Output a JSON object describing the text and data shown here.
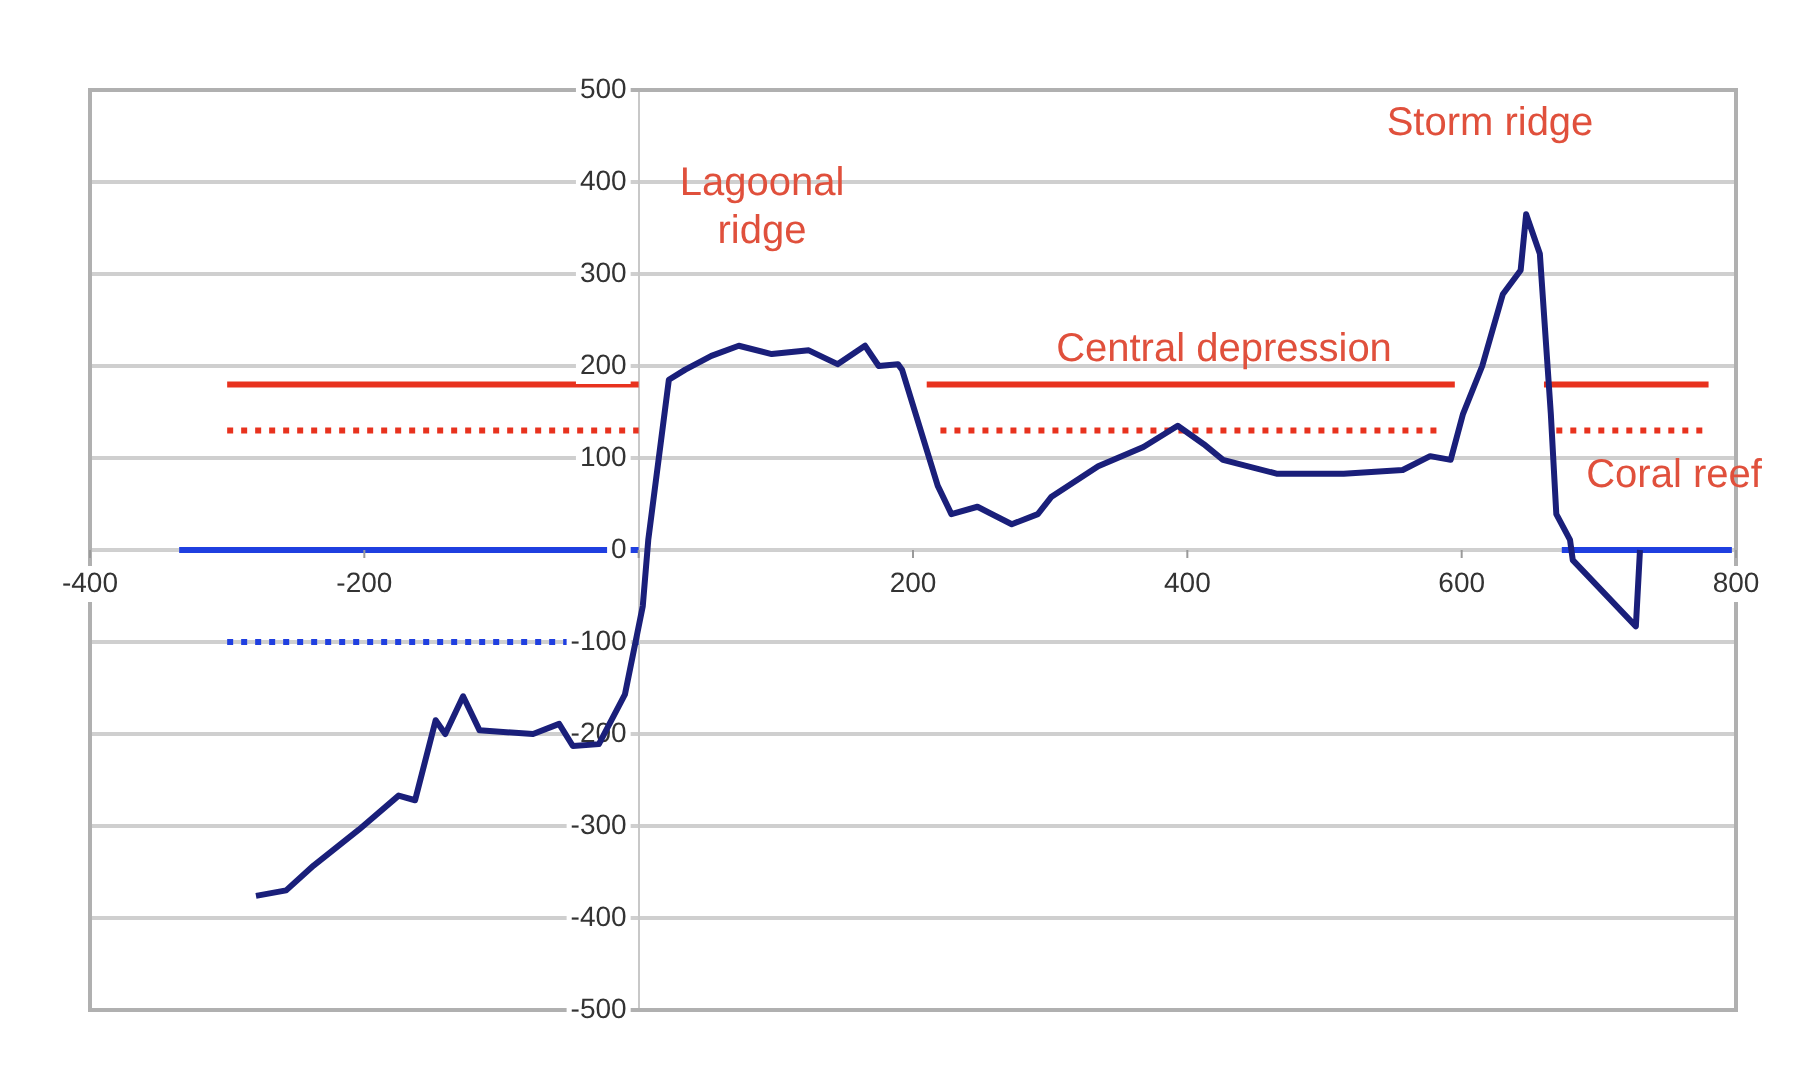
{
  "chart_data": {
    "type": "line",
    "xlim": [
      -400,
      800
    ],
    "ylim": [
      -500,
      500
    ],
    "xticks": [
      -400,
      -200,
      {
        "value": 0,
        "label": null
      },
      200,
      400,
      600,
      800
    ],
    "yticks": [
      -500,
      -400,
      -300,
      -200,
      -100,
      0,
      100,
      200,
      300,
      400,
      500
    ],
    "grid": "y",
    "legend": false,
    "marker": "none",
    "series": [
      {
        "color": "#e8321e",
        "line_style": "solid",
        "x": [
          -300,
          0,
          100,
          210,
          595,
          630,
          660,
          780
        ],
        "values": [
          180,
          180,
          null,
          180,
          180,
          null,
          180,
          180
        ]
      },
      {
        "color": "#e8321e",
        "line_style": "dotted",
        "x": [
          -300,
          0,
          100,
          220,
          586,
          630,
          669,
          778
        ],
        "values": [
          130,
          130,
          null,
          130,
          130,
          null,
          130,
          130
        ]
      },
      {
        "color": "#1f3fe0",
        "line_style": "solid",
        "x": [
          -335,
          0,
          300,
          673,
          797
        ],
        "values": [
          0,
          0,
          null,
          0,
          0
        ]
      },
      {
        "color": "#1f3fe0",
        "line_style": "dotted",
        "x": [
          -300,
          0
        ],
        "values": [
          -100,
          -100
        ]
      },
      {
        "color": "#1a1f7a",
        "line_style": "solid",
        "x": [
          -279,
          -257,
          -237,
          -204,
          -175,
          -163,
          -148,
          -141,
          -128,
          -116,
          -77,
          -58,
          -48,
          -29,
          -10,
          3,
          7,
          22,
          34,
          53,
          73,
          97,
          124,
          145,
          165,
          175,
          189,
          192,
          218,
          228,
          247,
          272,
          291,
          301,
          335,
          368,
          393,
          412,
          426,
          465,
          514,
          557,
          577,
          592,
          601,
          615,
          630,
          643,
          647,
          657,
          665,
          669,
          679,
          681,
          727,
          730
        ],
        "values": [
          -376,
          -370,
          -343,
          -304,
          -267,
          -272,
          -185,
          -200,
          -159,
          -196,
          -200,
          -189,
          -213,
          -211,
          -157,
          -61,
          11,
          185,
          196,
          211,
          222,
          213,
          217,
          202,
          222,
          200,
          202,
          196,
          70,
          39,
          47,
          28,
          39,
          58,
          91,
          112,
          135,
          115,
          98,
          83,
          83,
          87,
          102,
          98,
          148,
          200,
          278,
          304,
          365,
          322,
          148,
          39,
          11,
          -11,
          -83,
          0
        ]
      }
    ],
    "annotations": [
      "Lagoonal\nridge",
      "Storm ridge",
      "Central depression",
      "Coral reef"
    ]
  }
}
